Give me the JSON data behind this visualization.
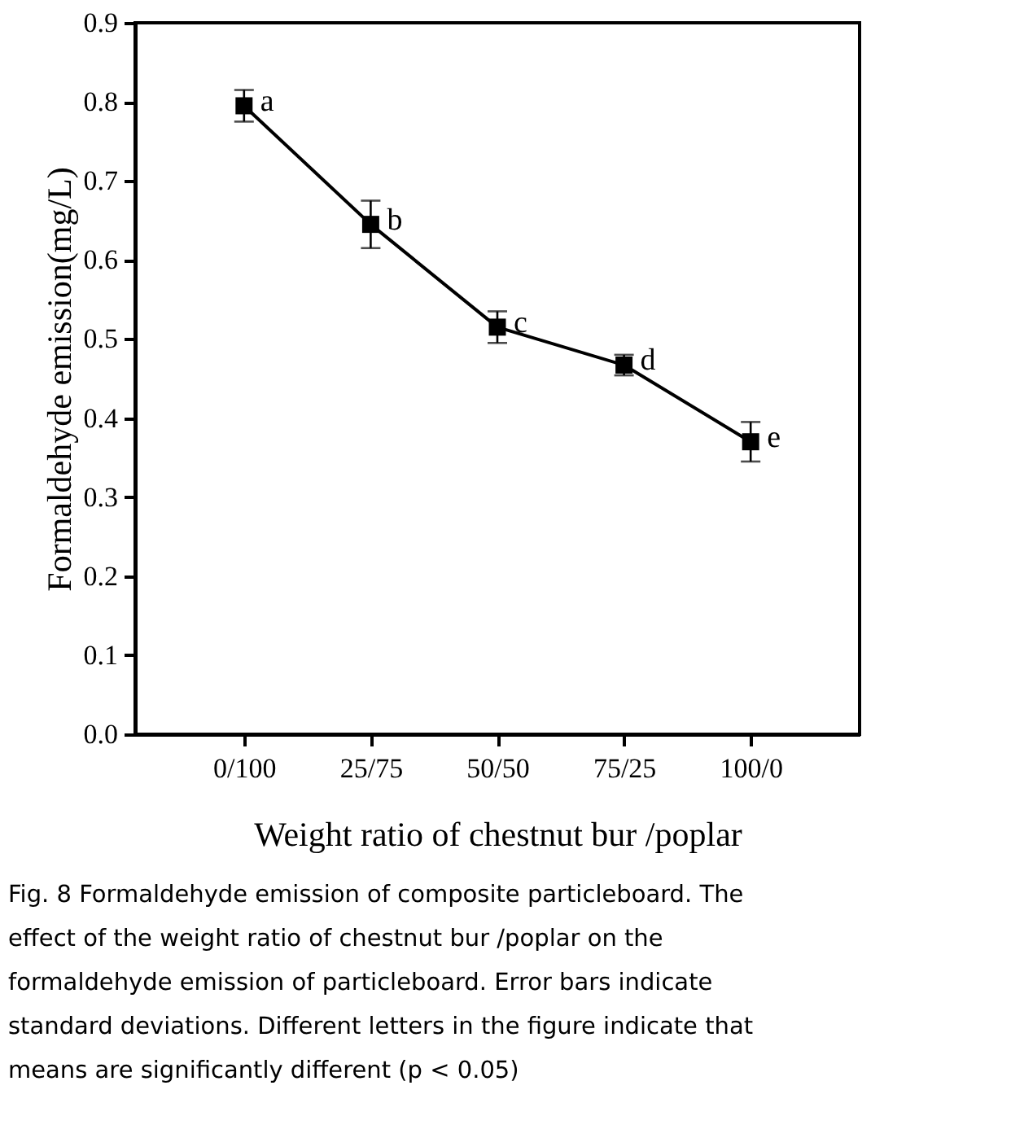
{
  "chart_data": {
    "type": "line",
    "xlabel": "Weight ratio of chestnut bur /poplar",
    "ylabel": "Formaldehyde emission(mg/L)",
    "categories": [
      "0/100",
      "25/75",
      "50/50",
      "75/25",
      "100/0"
    ],
    "series": [
      {
        "color": "#000000",
        "values": [
          0.795,
          0.645,
          0.515,
          0.467,
          0.37
        ],
        "errors": [
          0.02,
          0.03,
          0.02,
          0.013,
          0.025
        ]
      }
    ],
    "ylim": [
      0,
      0.9
    ],
    "yticks": [
      {
        "value": 0,
        "label": "0.0"
      },
      0.1,
      0.2,
      0.3,
      0.4,
      0.5,
      0.6,
      0.7,
      0.8,
      0.9
    ],
    "marker": "square",
    "line_style": "solid",
    "grid": false,
    "annotations": [
      {
        "text": "a",
        "x": "0/100",
        "y": 0.795
      },
      {
        "text": "b",
        "x": "25/75",
        "y": 0.645
      },
      {
        "text": "c",
        "x": "50/50",
        "y": 0.515
      },
      {
        "text": "d",
        "x": "75/25",
        "y": 0.467
      },
      {
        "text": "e",
        "x": "100/0",
        "y": 0.37
      },
      "Fig. 8  Formaldehyde emission of composite particleboard. The effect of the weight ratio of chestnut bur /poplar on the formaldehyde emission of particleboard. Error bars indicate standard deviations. Different letters in the figure indicate that means are significantly different (p < 0.05)"
    ]
  }
}
